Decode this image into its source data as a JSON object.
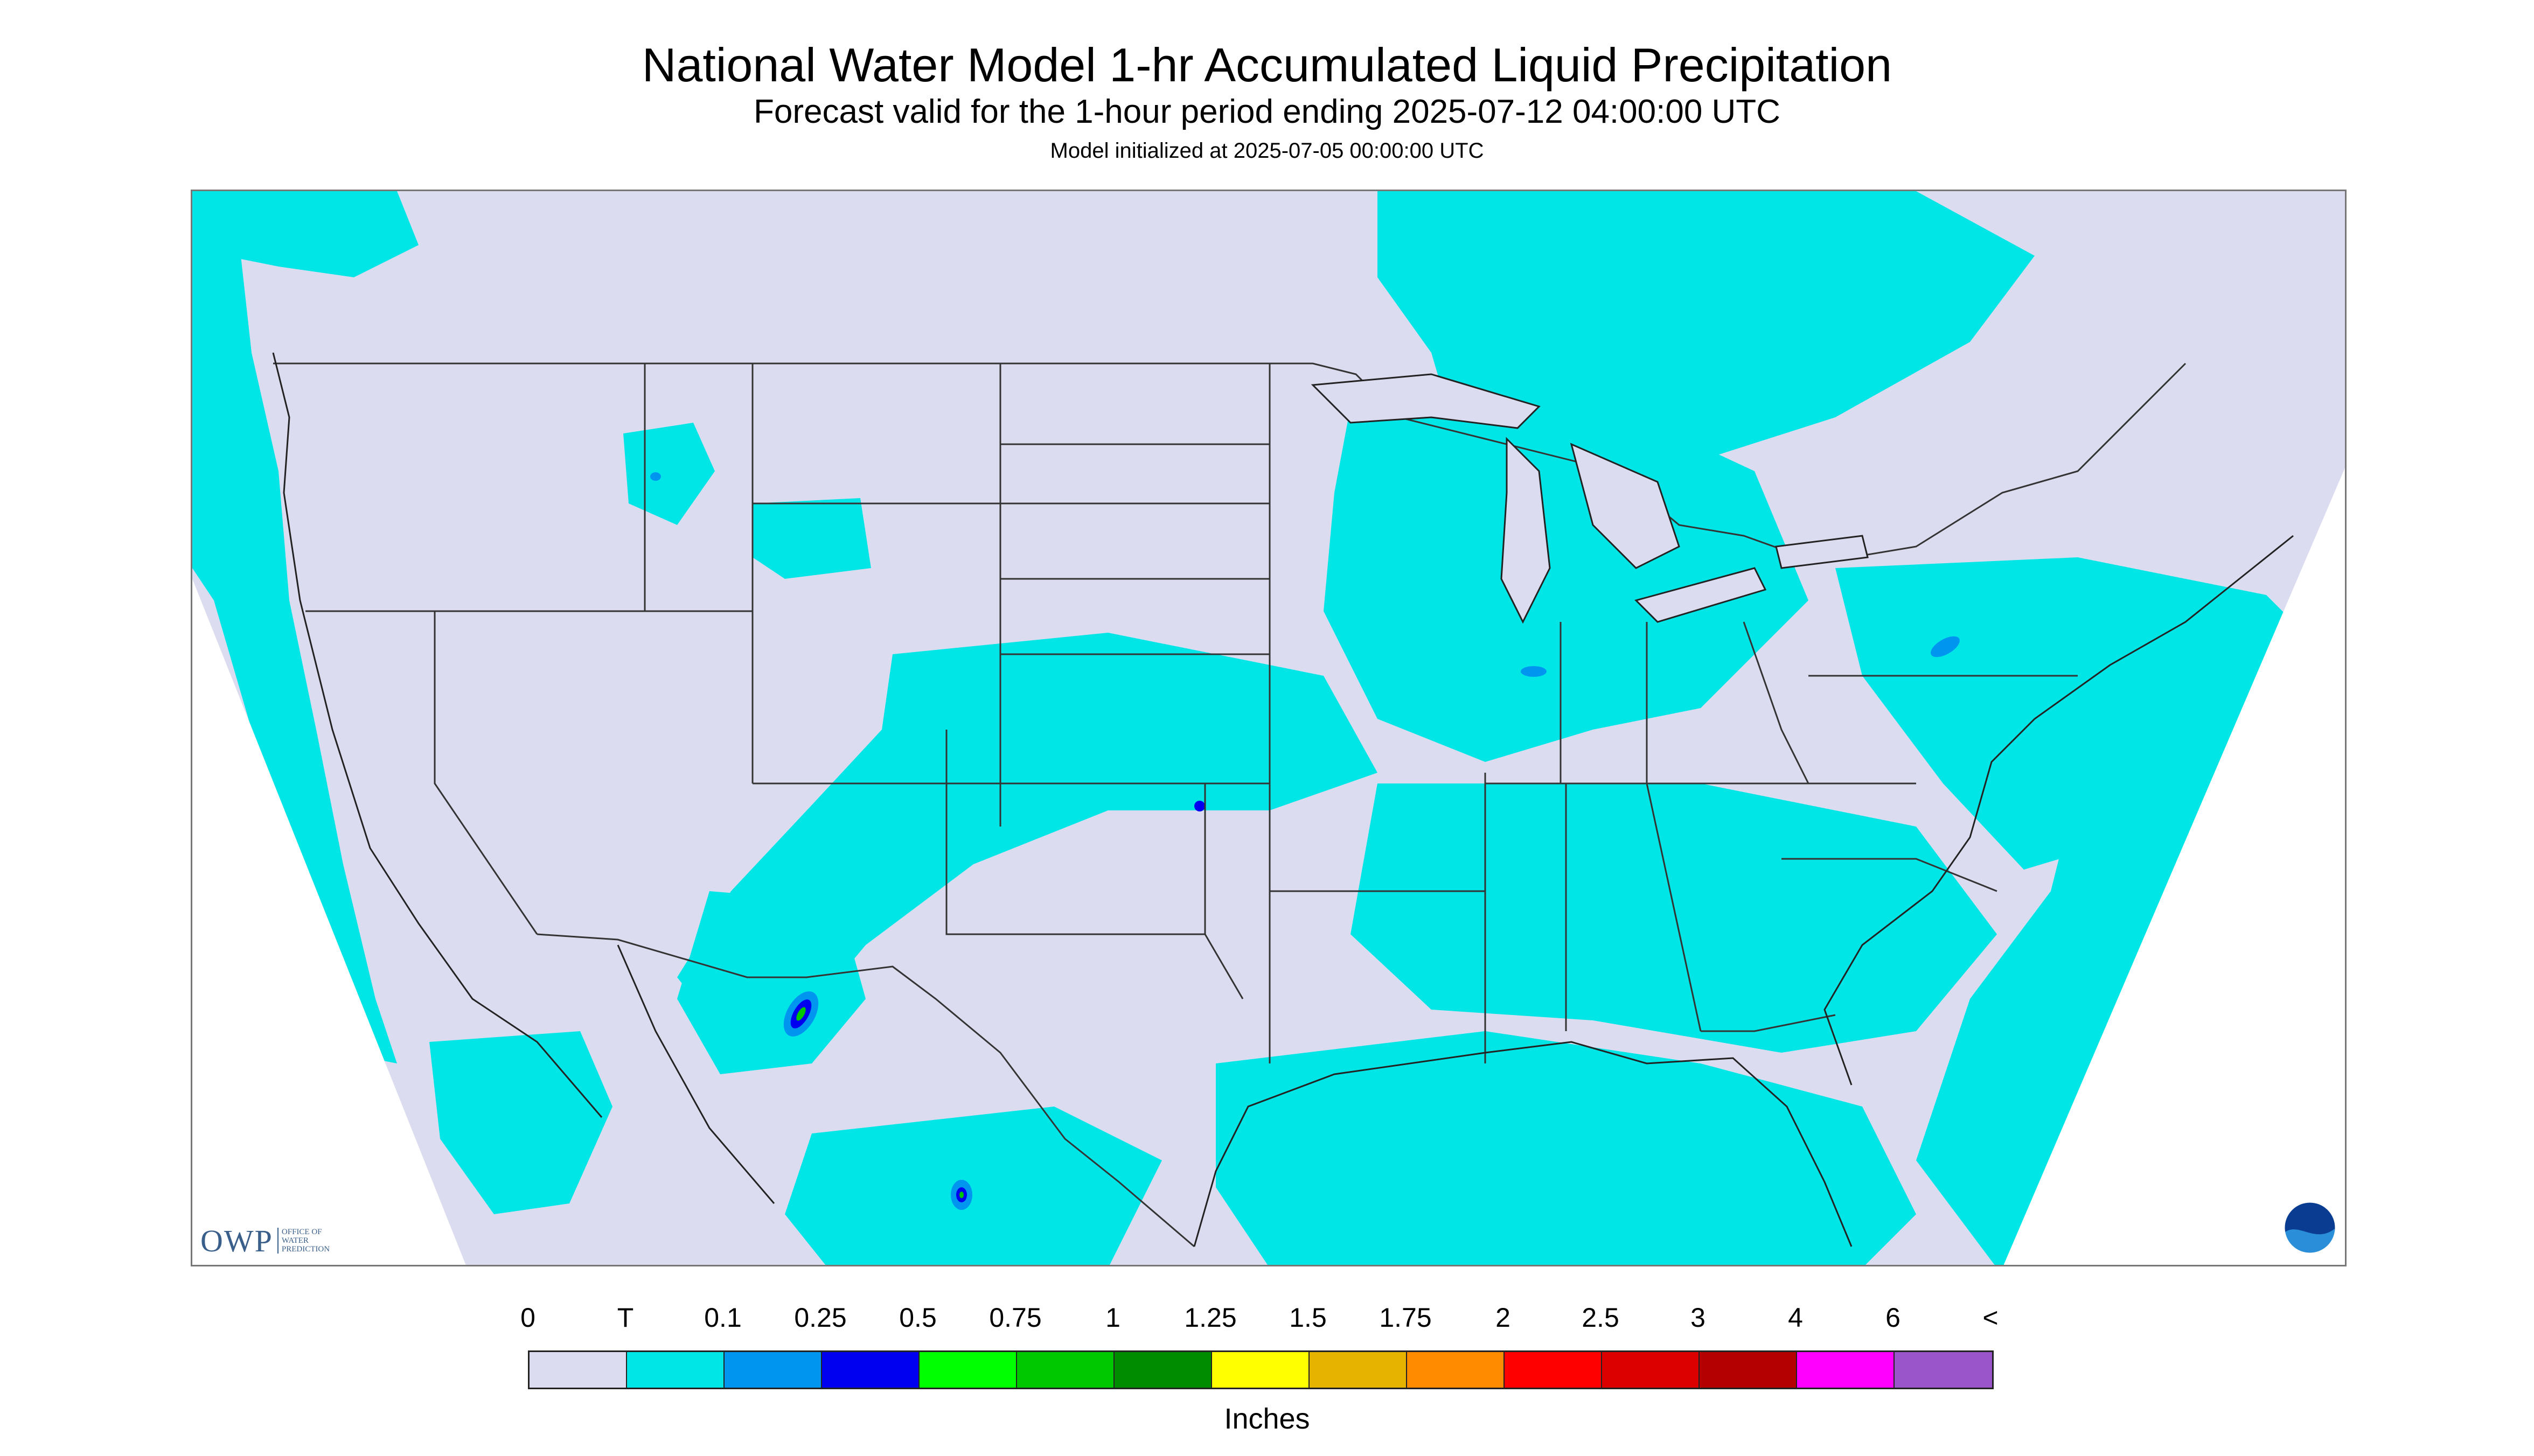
{
  "header": {
    "title": "National Water Model 1-hr Accumulated Liquid Precipitation",
    "subtitle": "Forecast valid for the 1-hour period ending 2025-07-12 04:00:00 UTC",
    "init": "Model initialized at 2025-07-05 00:00:00 UTC"
  },
  "legend": {
    "labels": [
      "0",
      "T",
      "0.1",
      "0.25",
      "0.5",
      "0.75",
      "1",
      "1.25",
      "1.5",
      "1.75",
      "2",
      "2.5",
      "3",
      "4",
      "6",
      "<"
    ],
    "colors": [
      "#dcdcf0",
      "#00e6e6",
      "#0096f0",
      "#0000f0",
      "#00ff00",
      "#00c800",
      "#008c00",
      "#ffff00",
      "#e6b400",
      "#ff8c00",
      "#ff0000",
      "#dc0000",
      "#b40000",
      "#ff00ff",
      "#9955c9"
    ],
    "units": "Inches"
  },
  "logos": {
    "owp_text": "OWP",
    "owp_sub": "OFFICE OF WATER PREDICTION",
    "noaa_icon": "noaa-logo-icon"
  },
  "map": {
    "background_color": "#dcdcf0",
    "outside_domain_color": "#ffffff",
    "trace_color": "#00e6e6",
    "border_color": "#333333"
  }
}
